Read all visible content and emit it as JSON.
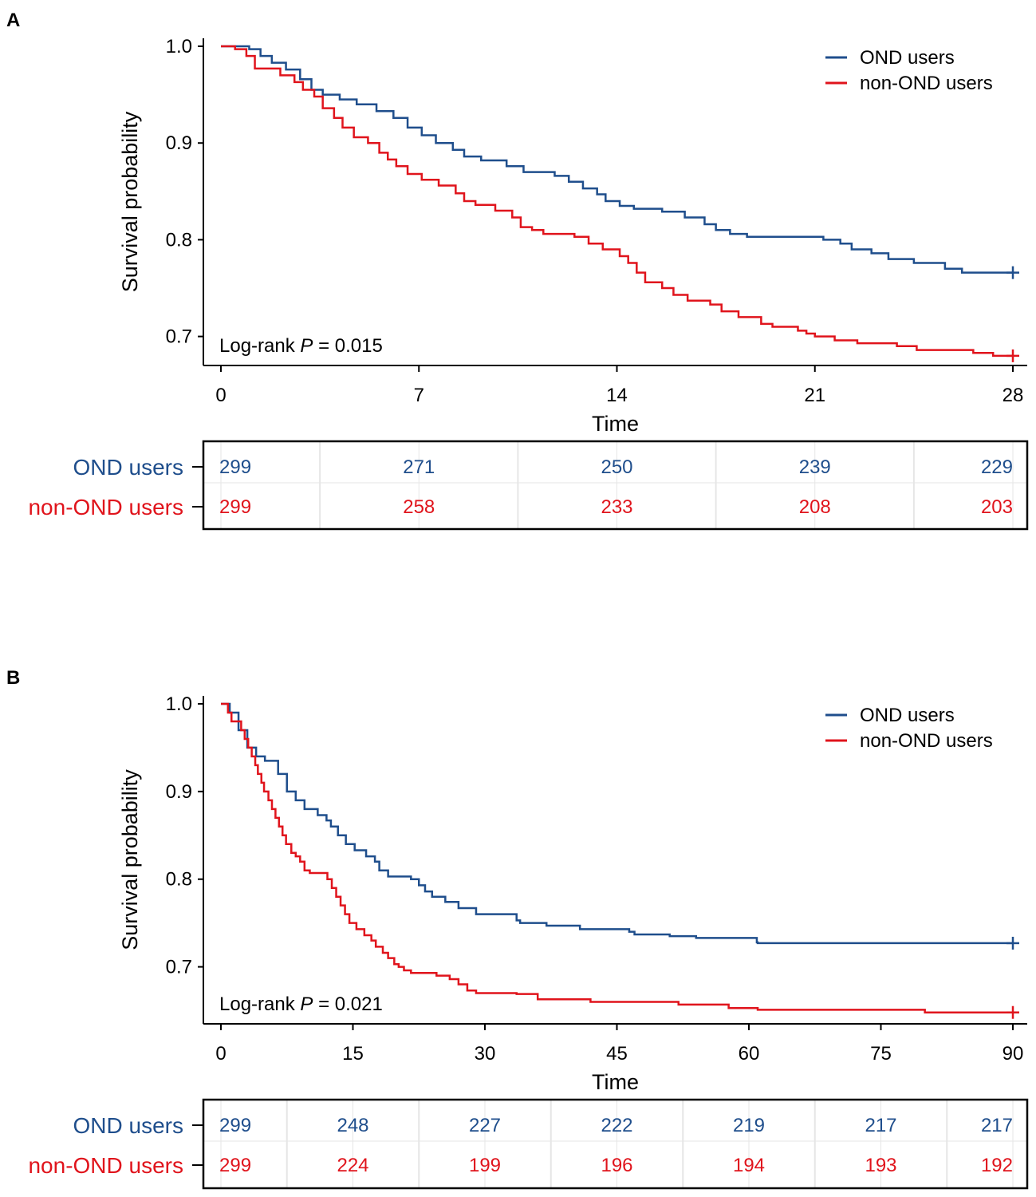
{
  "colors": {
    "ond": "#1f4e8c",
    "non_ond": "#e0141c",
    "axis": "#000000",
    "grid": "#e6e6e6"
  },
  "chart_data": [
    {
      "panel": "A",
      "type": "line",
      "xlabel": "Time",
      "ylabel": "Survival probability",
      "xlim": [
        0,
        28
      ],
      "ylim": [
        0.67,
        1.0
      ],
      "x_ticks": [
        0,
        7,
        14,
        21,
        28
      ],
      "x_tick_labels": [
        "0",
        "7",
        "14",
        "21",
        "28"
      ],
      "y_ticks": [
        0.7,
        0.8,
        0.9,
        1.0
      ],
      "y_tick_labels": [
        "0.7",
        "0.8",
        "0.9",
        "1.0"
      ],
      "annotation": {
        "prefix": "Log-rank",
        "p_symbol": "P",
        "value": " = 0.015"
      },
      "legend": {
        "position": "top-right"
      },
      "series": [
        {
          "name": "OND users",
          "color": "#1f4e8c",
          "steps": [
            [
              0,
              1.0
            ],
            [
              0.6,
              1.0
            ],
            [
              1.0,
              0.997
            ],
            [
              1.4,
              0.99
            ],
            [
              1.8,
              0.983
            ],
            [
              2.3,
              0.976
            ],
            [
              2.8,
              0.966
            ],
            [
              3.2,
              0.955
            ],
            [
              3.6,
              0.95
            ],
            [
              4.2,
              0.945
            ],
            [
              4.8,
              0.94
            ],
            [
              5.5,
              0.933
            ],
            [
              6.1,
              0.926
            ],
            [
              6.6,
              0.916
            ],
            [
              7.1,
              0.908
            ],
            [
              7.6,
              0.9
            ],
            [
              8.2,
              0.893
            ],
            [
              8.6,
              0.886
            ],
            [
              9.2,
              0.882
            ],
            [
              10.1,
              0.876
            ],
            [
              10.7,
              0.87
            ],
            [
              11.8,
              0.866
            ],
            [
              12.3,
              0.86
            ],
            [
              12.8,
              0.853
            ],
            [
              13.3,
              0.847
            ],
            [
              13.6,
              0.84
            ],
            [
              14.1,
              0.835
            ],
            [
              14.6,
              0.832
            ],
            [
              15.6,
              0.829
            ],
            [
              16.4,
              0.823
            ],
            [
              17.1,
              0.816
            ],
            [
              17.5,
              0.81
            ],
            [
              18.0,
              0.806
            ],
            [
              18.6,
              0.803
            ],
            [
              20.8,
              0.803
            ],
            [
              21.3,
              0.8
            ],
            [
              21.9,
              0.796
            ],
            [
              22.3,
              0.79
            ],
            [
              23.0,
              0.786
            ],
            [
              23.6,
              0.78
            ],
            [
              24.5,
              0.776
            ],
            [
              25.6,
              0.77
            ],
            [
              26.2,
              0.766
            ],
            [
              28,
              0.766
            ]
          ],
          "censor": [
            [
              28,
              0.766
            ]
          ]
        },
        {
          "name": "non-OND users",
          "color": "#e0141c",
          "steps": [
            [
              0,
              1.0
            ],
            [
              0.5,
              0.997
            ],
            [
              0.9,
              0.99
            ],
            [
              1.2,
              0.977
            ],
            [
              2.1,
              0.97
            ],
            [
              2.6,
              0.963
            ],
            [
              2.9,
              0.955
            ],
            [
              3.3,
              0.948
            ],
            [
              3.6,
              0.936
            ],
            [
              4.0,
              0.926
            ],
            [
              4.3,
              0.916
            ],
            [
              4.7,
              0.906
            ],
            [
              5.2,
              0.9
            ],
            [
              5.6,
              0.89
            ],
            [
              5.9,
              0.883
            ],
            [
              6.2,
              0.876
            ],
            [
              6.6,
              0.868
            ],
            [
              7.1,
              0.862
            ],
            [
              7.7,
              0.856
            ],
            [
              8.3,
              0.848
            ],
            [
              8.6,
              0.84
            ],
            [
              9.0,
              0.836
            ],
            [
              9.7,
              0.83
            ],
            [
              10.3,
              0.823
            ],
            [
              10.6,
              0.813
            ],
            [
              11.0,
              0.81
            ],
            [
              11.4,
              0.806
            ],
            [
              12.5,
              0.803
            ],
            [
              13.0,
              0.796
            ],
            [
              13.5,
              0.79
            ],
            [
              14.1,
              0.783
            ],
            [
              14.4,
              0.776
            ],
            [
              14.7,
              0.766
            ],
            [
              15.0,
              0.756
            ],
            [
              15.6,
              0.75
            ],
            [
              16.0,
              0.743
            ],
            [
              16.5,
              0.737
            ],
            [
              17.3,
              0.733
            ],
            [
              17.7,
              0.726
            ],
            [
              18.3,
              0.72
            ],
            [
              19.1,
              0.713
            ],
            [
              19.5,
              0.71
            ],
            [
              20.4,
              0.706
            ],
            [
              20.7,
              0.703
            ],
            [
              21.0,
              0.7
            ],
            [
              21.7,
              0.696
            ],
            [
              22.5,
              0.693
            ],
            [
              23.9,
              0.69
            ],
            [
              24.6,
              0.686
            ],
            [
              26.6,
              0.683
            ],
            [
              27.3,
              0.68
            ],
            [
              28,
              0.68
            ]
          ],
          "censor": [
            [
              28,
              0.68
            ]
          ]
        }
      ],
      "risk_table": {
        "times": [
          0,
          7,
          14,
          21,
          28
        ],
        "rows": [
          {
            "label": "OND users",
            "color": "#1f4e8c",
            "values": [
              "299",
              "271",
              "250",
              "239",
              "229"
            ]
          },
          {
            "label": "non-OND users",
            "color": "#e0141c",
            "values": [
              "299",
              "258",
              "233",
              "208",
              "203"
            ]
          }
        ]
      }
    },
    {
      "panel": "B",
      "type": "line",
      "xlabel": "Time",
      "ylabel": "Survival probability",
      "xlim": [
        0,
        90
      ],
      "ylim": [
        0.635,
        1.0
      ],
      "x_ticks": [
        0,
        15,
        30,
        45,
        60,
        75,
        90
      ],
      "x_tick_labels": [
        "0",
        "15",
        "30",
        "45",
        "60",
        "75",
        "90"
      ],
      "y_ticks": [
        0.7,
        0.8,
        0.9,
        1.0
      ],
      "y_tick_labels": [
        "0.7",
        "0.8",
        "0.9",
        "1.0"
      ],
      "annotation": {
        "prefix": "Log-rank",
        "p_symbol": "P",
        "value": " = 0.021"
      },
      "legend": {
        "position": "top-right"
      },
      "series": [
        {
          "name": "OND users",
          "color": "#1f4e8c",
          "steps": [
            [
              0,
              1.0
            ],
            [
              1.0,
              0.99
            ],
            [
              2.0,
              0.97
            ],
            [
              3.0,
              0.95
            ],
            [
              4.0,
              0.94
            ],
            [
              5.0,
              0.935
            ],
            [
              6.5,
              0.92
            ],
            [
              7.5,
              0.9
            ],
            [
              8.5,
              0.89
            ],
            [
              9.5,
              0.88
            ],
            [
              11,
              0.873
            ],
            [
              12,
              0.867
            ],
            [
              12.5,
              0.86
            ],
            [
              13.3,
              0.85
            ],
            [
              14.2,
              0.84
            ],
            [
              15.2,
              0.833
            ],
            [
              16.5,
              0.826
            ],
            [
              17.5,
              0.82
            ],
            [
              18,
              0.81
            ],
            [
              19,
              0.803
            ],
            [
              21.6,
              0.8
            ],
            [
              22.5,
              0.793
            ],
            [
              23.2,
              0.786
            ],
            [
              24,
              0.78
            ],
            [
              25.5,
              0.774
            ],
            [
              27,
              0.767
            ],
            [
              29,
              0.76
            ],
            [
              33.6,
              0.753
            ],
            [
              34,
              0.75
            ],
            [
              37,
              0.747
            ],
            [
              40.8,
              0.743
            ],
            [
              46.4,
              0.74
            ],
            [
              47,
              0.737
            ],
            [
              51,
              0.735
            ],
            [
              54,
              0.733
            ],
            [
              60.9,
              0.728
            ],
            [
              61,
              0.727
            ],
            [
              90,
              0.727
            ]
          ],
          "censor": [
            [
              90,
              0.727
            ]
          ]
        },
        {
          "name": "non-OND users",
          "color": "#e0141c",
          "steps": [
            [
              0,
              1.0
            ],
            [
              0.8,
              0.99
            ],
            [
              1.2,
              0.98
            ],
            [
              2.3,
              0.97
            ],
            [
              2.7,
              0.96
            ],
            [
              3.1,
              0.95
            ],
            [
              3.5,
              0.94
            ],
            [
              3.9,
              0.93
            ],
            [
              4.2,
              0.92
            ],
            [
              4.6,
              0.91
            ],
            [
              4.9,
              0.9
            ],
            [
              5.4,
              0.89
            ],
            [
              5.8,
              0.88
            ],
            [
              6.2,
              0.87
            ],
            [
              6.6,
              0.86
            ],
            [
              7.0,
              0.85
            ],
            [
              7.4,
              0.84
            ],
            [
              8.0,
              0.83
            ],
            [
              8.5,
              0.826
            ],
            [
              9.0,
              0.82
            ],
            [
              9.5,
              0.81
            ],
            [
              10.1,
              0.807
            ],
            [
              12.1,
              0.8
            ],
            [
              12.6,
              0.79
            ],
            [
              13.1,
              0.78
            ],
            [
              13.6,
              0.77
            ],
            [
              14.1,
              0.76
            ],
            [
              14.6,
              0.75
            ],
            [
              15.4,
              0.743
            ],
            [
              16.3,
              0.736
            ],
            [
              17.1,
              0.73
            ],
            [
              17.6,
              0.723
            ],
            [
              18.4,
              0.716
            ],
            [
              19.0,
              0.71
            ],
            [
              19.7,
              0.703
            ],
            [
              20.2,
              0.7
            ],
            [
              20.8,
              0.696
            ],
            [
              21.6,
              0.693
            ],
            [
              24.5,
              0.69
            ],
            [
              26,
              0.686
            ],
            [
              27,
              0.68
            ],
            [
              28,
              0.673
            ],
            [
              29,
              0.67
            ],
            [
              33.6,
              0.669
            ],
            [
              36,
              0.663
            ],
            [
              42,
              0.66
            ],
            [
              52,
              0.657
            ],
            [
              57.7,
              0.653
            ],
            [
              61,
              0.651
            ],
            [
              80,
              0.648
            ],
            [
              90,
              0.648
            ]
          ],
          "censor": [
            [
              90,
              0.648
            ]
          ]
        }
      ],
      "risk_table": {
        "times": [
          0,
          15,
          30,
          45,
          60,
          75,
          90
        ],
        "rows": [
          {
            "label": "OND users",
            "color": "#1f4e8c",
            "values": [
              "299",
              "248",
              "227",
              "222",
              "219",
              "217",
              "217"
            ]
          },
          {
            "label": "non-OND users",
            "color": "#e0141c",
            "values": [
              "299",
              "224",
              "199",
              "196",
              "194",
              "193",
              "192"
            ]
          }
        ]
      }
    }
  ]
}
